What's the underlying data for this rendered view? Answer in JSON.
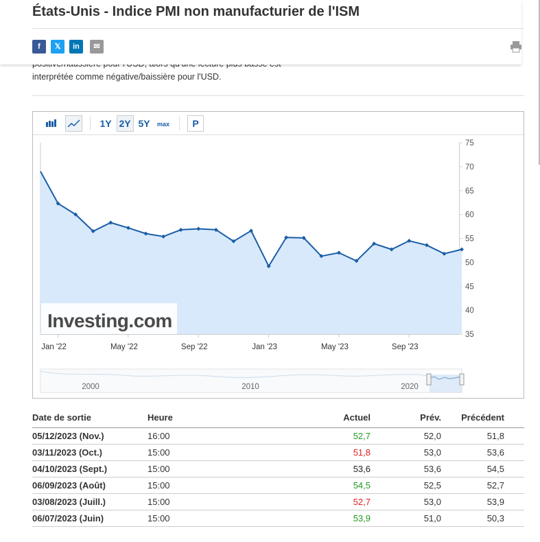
{
  "header": {
    "title": "États-Unis - Indice PMI non manufacturier de l'ISM"
  },
  "description": [
    "positive/haussière pour l'USD, alors qu'une lecture plus basse est",
    "interprétée comme négative/baissière pour l'USD."
  ],
  "toolbar": {
    "ranges": [
      "1Y",
      "2Y",
      "5Y",
      "max"
    ],
    "selected": "2Y",
    "extra": "P"
  },
  "chart_data": {
    "type": "area",
    "categories": [
      null,
      "Jan '22",
      null,
      null,
      null,
      "May '22",
      null,
      null,
      null,
      "Sep '22",
      null,
      null,
      null,
      "Jan '23",
      null,
      null,
      null,
      "May '23",
      null,
      null,
      null,
      "Sep '23",
      null,
      null,
      null
    ],
    "series": [
      {
        "name": "ISM",
        "color": "#1a5da6",
        "fill": "#d8e9fc",
        "values": [
          69.0,
          62.3,
          60.0,
          56.5,
          58.3,
          57.2,
          56.0,
          55.4,
          56.8,
          57.0,
          56.8,
          54.4,
          56.6,
          49.2,
          55.2,
          55.1,
          51.3,
          52.0,
          50.3,
          53.9,
          52.7,
          54.5,
          53.6,
          51.8,
          52.7
        ]
      }
    ],
    "ylim": [
      35,
      75
    ],
    "yticks": [
      35,
      40,
      45,
      50,
      55,
      60,
      65,
      70,
      75
    ],
    "grid": false,
    "watermark": "Investing.com",
    "navigator": {
      "labels": [
        "2000",
        "2010",
        "2020"
      ]
    }
  },
  "table": {
    "columns": [
      "Date de sortie",
      "Heure",
      "Actuel",
      "Prév.",
      "Précédent"
    ],
    "rows": [
      [
        "05/12/2023 (Nov.)",
        "16:00",
        "52,7",
        "52,0",
        "51,8"
      ],
      [
        "03/11/2023 (Oct.)",
        "15:00",
        "51,8",
        "53,0",
        "53,6"
      ],
      [
        "04/10/2023 (Sept.)",
        "15:00",
        "53,6",
        "53,6",
        "54,5"
      ],
      [
        "06/09/2023 (Août)",
        "15:00",
        "54,5",
        "52,5",
        "52,7"
      ],
      [
        "03/08/2023 (Juill.)",
        "15:00",
        "52,7",
        "53,0",
        "53,9"
      ],
      [
        "06/07/2023 (Juin)",
        "15:00",
        "53,9",
        "51,0",
        "50,3"
      ]
    ],
    "actual_colors": [
      "#1e9b1e",
      "#e0201f",
      "#222222",
      "#1e9b1e",
      "#e0201f",
      "#1e9b1e"
    ]
  }
}
